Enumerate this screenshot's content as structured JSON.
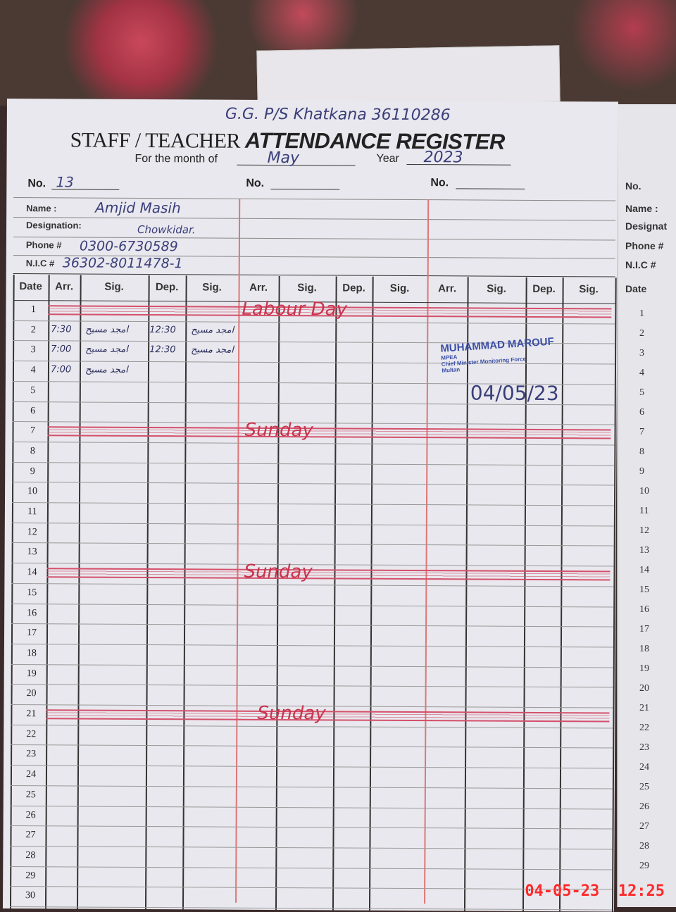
{
  "school_note": "G.G. P/S Khatkana 36110286",
  "title": {
    "part1": "STAFF / TEACHER",
    "part2": "ATTENDANCE REGISTER"
  },
  "month": {
    "label": "For the month of",
    "value": "May"
  },
  "year": {
    "label": "Year",
    "value": "2023"
  },
  "sections": [
    {
      "no_label": "No.",
      "no_value": "13",
      "name_label": "Name :",
      "name": "Amjid Masih",
      "designation_label": "Designation:",
      "designation": "Chowkidar.",
      "phone_label": "Phone #",
      "phone": "0300-6730589",
      "nic_label": "N.I.C #",
      "nic": "36302-8011478-1"
    },
    {
      "no_label": "No.",
      "no_value": ""
    },
    {
      "no_label": "No.",
      "no_value": ""
    }
  ],
  "columns": {
    "date": "Date",
    "arr": "Arr.",
    "sig": "Sig.",
    "dep": "Dep."
  },
  "rows": [
    {
      "date": "1"
    },
    {
      "date": "2",
      "arr": "7:30",
      "sig": "امجد مسیح",
      "dep": "12:30",
      "sig2": "امجد مسیح"
    },
    {
      "date": "3",
      "arr": "7:00",
      "sig": "امجد مسیح",
      "dep": "12:30",
      "sig2": "امجد مسیح"
    },
    {
      "date": "4",
      "arr": "7:00",
      "sig": "امجد مسیح"
    },
    {
      "date": "5"
    },
    {
      "date": "6"
    },
    {
      "date": "7"
    },
    {
      "date": "8"
    },
    {
      "date": "9"
    },
    {
      "date": "10"
    },
    {
      "date": "11"
    },
    {
      "date": "12"
    },
    {
      "date": "13"
    },
    {
      "date": "14"
    },
    {
      "date": "15"
    },
    {
      "date": "16"
    },
    {
      "date": "17"
    },
    {
      "date": "18"
    },
    {
      "date": "19"
    },
    {
      "date": "20"
    },
    {
      "date": "21"
    },
    {
      "date": "22"
    },
    {
      "date": "23"
    },
    {
      "date": "24"
    },
    {
      "date": "25"
    },
    {
      "date": "26"
    },
    {
      "date": "27"
    },
    {
      "date": "28"
    },
    {
      "date": "29"
    },
    {
      "date": "30"
    }
  ],
  "holidays": [
    {
      "date": "1",
      "label": "Labour Day"
    },
    {
      "date": "7",
      "label": "Sunday"
    },
    {
      "date": "14",
      "label": "Sunday"
    },
    {
      "date": "21",
      "label": "Sunday"
    }
  ],
  "stamp": {
    "name": "MUHAMMAD MAROUF",
    "line1": "MPEA",
    "line2": "Chief Minister Monitoring Force",
    "line3": "Multan",
    "date": "04/05/23"
  },
  "right_page": {
    "no_label": "No.",
    "name_label": "Name :",
    "designation_label": "Designat",
    "phone_label": "Phone #",
    "nic_label": "N.I.C #",
    "date_label": "Date",
    "dates": [
      "1",
      "2",
      "3",
      "4",
      "5",
      "6",
      "7",
      "8",
      "9",
      "10",
      "11",
      "12",
      "13",
      "14",
      "15",
      "16",
      "17",
      "18",
      "19",
      "20",
      "21",
      "22",
      "23",
      "24",
      "25",
      "26",
      "27",
      "28",
      "29"
    ]
  },
  "timestamp": "04-05-23  12:25",
  "colors": {
    "ink": "#3a3f7a",
    "red_ink": "#c8354e",
    "timestamp": "#ff2a2a"
  }
}
